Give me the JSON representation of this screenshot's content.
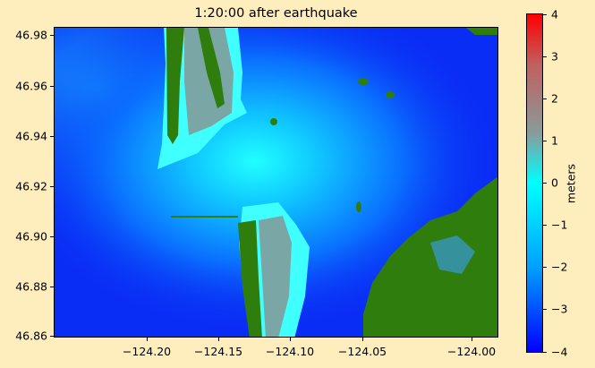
{
  "title": "1:20:00 after earthquake",
  "colorbar": {
    "label": "meters",
    "ticks": [
      "4",
      "3",
      "2",
      "1",
      "0",
      "−1",
      "−2",
      "−3",
      "−4"
    ],
    "range": [
      -4,
      4
    ],
    "colors": {
      "low": "#0000ff",
      "mid": "#00ffff",
      "high": "#ff0000"
    }
  },
  "map": {
    "y_ticks": [
      "46.98",
      "46.96",
      "46.94",
      "46.92",
      "46.90",
      "46.88",
      "46.86"
    ],
    "x_ticks": [
      "−124.20",
      "−124.15",
      "−124.10",
      "−124.05",
      "−124.00"
    ],
    "colors": {
      "ocean": "#0a2df5",
      "land": "#2f7d0c",
      "inundation": "#40ffff"
    }
  }
}
